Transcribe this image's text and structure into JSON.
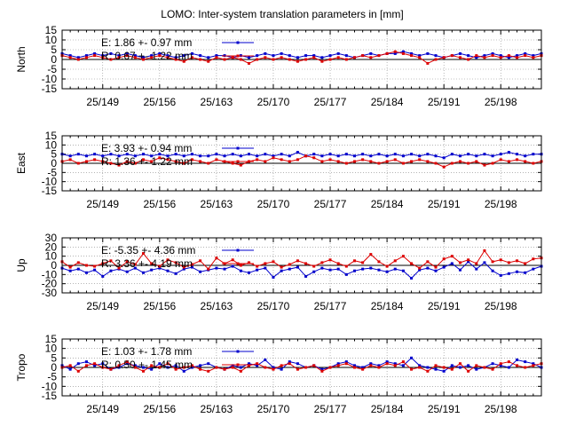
{
  "title": "LOMO: Inter-system translation parameters in [mm]",
  "colors": {
    "e_series": "#0000cc",
    "r_series": "#dd0000",
    "grid": "#888888",
    "axis": "#000000"
  },
  "chart_data": [
    {
      "type": "line",
      "ylabel": "North",
      "ylim": [
        -15,
        15
      ],
      "yticks": [
        15,
        10,
        5,
        0,
        -5,
        -10,
        -15
      ],
      "xlim": [
        144,
        203
      ],
      "xticks": [
        149,
        156,
        163,
        170,
        177,
        184,
        191,
        198
      ],
      "xtick_labels": [
        "25/149",
        "25/156",
        "25/163",
        "25/170",
        "25/177",
        "25/184",
        "25/191",
        "25/198"
      ],
      "legend_placement": "top-left",
      "series": [
        {
          "name": "E:   1.86 +- 0.97 mm",
          "x": [
            144,
            145,
            146,
            147,
            148,
            149,
            150,
            151,
            152,
            153,
            154,
            155,
            156,
            157,
            158,
            159,
            160,
            161,
            162,
            163,
            164,
            165,
            166,
            167,
            168,
            169,
            170,
            171,
            172,
            173,
            174,
            175,
            176,
            177,
            178,
            179,
            180,
            181,
            182,
            183,
            184,
            185,
            186,
            187,
            188,
            189,
            190,
            191,
            192,
            193,
            194,
            195,
            196,
            197,
            198,
            199,
            200,
            201,
            202,
            203
          ],
          "values": [
            3,
            2,
            1,
            2,
            3,
            2,
            3,
            2,
            3,
            2,
            1,
            2,
            3,
            2,
            1,
            2,
            3,
            2,
            1,
            2,
            2,
            1,
            2,
            1,
            2,
            3,
            2,
            3,
            2,
            1,
            2,
            2,
            1,
            2,
            3,
            2,
            1,
            2,
            3,
            2,
            3,
            3,
            4,
            3,
            2,
            3,
            2,
            1,
            2,
            3,
            2,
            1,
            2,
            3,
            2,
            1,
            2,
            3,
            2,
            3
          ]
        },
        {
          "name": "R:   0.67 +- 1.22 mm",
          "x": [
            144,
            145,
            146,
            147,
            148,
            149,
            150,
            151,
            152,
            153,
            154,
            155,
            156,
            157,
            158,
            159,
            160,
            161,
            162,
            163,
            164,
            165,
            166,
            167,
            168,
            169,
            170,
            171,
            172,
            173,
            174,
            175,
            176,
            177,
            178,
            179,
            180,
            181,
            182,
            183,
            184,
            185,
            186,
            187,
            188,
            189,
            190,
            191,
            192,
            193,
            194,
            195,
            196,
            197,
            198,
            199,
            200,
            201,
            202,
            203
          ],
          "values": [
            2,
            1,
            0,
            1,
            2,
            1,
            0,
            1,
            2,
            1,
            0,
            1,
            2,
            1,
            0,
            -1,
            1,
            0,
            -1,
            1,
            0,
            1,
            0,
            -2,
            0,
            1,
            0,
            1,
            0,
            -1,
            0,
            1,
            -1,
            0,
            1,
            0,
            1,
            2,
            1,
            2,
            3,
            4,
            3,
            2,
            1,
            -2,
            0,
            1,
            2,
            1,
            0,
            2,
            1,
            2,
            1,
            2,
            1,
            2,
            1,
            2
          ]
        }
      ]
    },
    {
      "type": "line",
      "ylabel": "East",
      "ylim": [
        -15,
        15
      ],
      "yticks": [
        15,
        10,
        5,
        0,
        -5,
        -10,
        -15
      ],
      "xlim": [
        144,
        203
      ],
      "xticks": [
        149,
        156,
        163,
        170,
        177,
        184,
        191,
        198
      ],
      "xtick_labels": [
        "25/149",
        "25/156",
        "25/163",
        "25/170",
        "25/177",
        "25/184",
        "25/191",
        "25/198"
      ],
      "legend_placement": "top-left",
      "series": [
        {
          "name": "E:   3.93 +- 0.94 mm",
          "x": [
            144,
            145,
            146,
            147,
            148,
            149,
            150,
            151,
            152,
            153,
            154,
            155,
            156,
            157,
            158,
            159,
            160,
            161,
            162,
            163,
            164,
            165,
            166,
            167,
            168,
            169,
            170,
            171,
            172,
            173,
            174,
            175,
            176,
            177,
            178,
            179,
            180,
            181,
            182,
            183,
            184,
            185,
            186,
            187,
            188,
            189,
            190,
            191,
            192,
            193,
            194,
            195,
            196,
            197,
            198,
            199,
            200,
            201,
            202,
            203
          ],
          "values": [
            5,
            4,
            5,
            4,
            5,
            4,
            5,
            4,
            5,
            4,
            5,
            4,
            5,
            4,
            5,
            4,
            5,
            4,
            4,
            5,
            4,
            5,
            4,
            5,
            4,
            5,
            4,
            5,
            4,
            6,
            4,
            5,
            4,
            5,
            4,
            5,
            4,
            5,
            4,
            5,
            4,
            5,
            4,
            5,
            4,
            5,
            4,
            3,
            5,
            4,
            5,
            4,
            5,
            4,
            5,
            6,
            5,
            4,
            5,
            5
          ]
        },
        {
          "name": "R:   1.36 +- 1.22 mm",
          "x": [
            144,
            145,
            146,
            147,
            148,
            149,
            150,
            151,
            152,
            153,
            154,
            155,
            156,
            157,
            158,
            159,
            160,
            161,
            162,
            163,
            164,
            165,
            166,
            167,
            168,
            169,
            170,
            171,
            172,
            173,
            174,
            175,
            176,
            177,
            178,
            179,
            180,
            181,
            182,
            183,
            184,
            185,
            186,
            187,
            188,
            189,
            190,
            191,
            192,
            193,
            194,
            195,
            196,
            197,
            198,
            199,
            200,
            201,
            202,
            203
          ],
          "values": [
            1,
            2,
            0,
            1,
            2,
            1,
            0,
            -1,
            1,
            0,
            2,
            1,
            3,
            2,
            1,
            0,
            2,
            1,
            0,
            2,
            1,
            0,
            -1,
            1,
            2,
            1,
            3,
            2,
            1,
            2,
            4,
            3,
            1,
            2,
            1,
            0,
            1,
            2,
            1,
            0,
            1,
            2,
            0,
            1,
            2,
            1,
            0,
            -2,
            0,
            1,
            0,
            1,
            -1,
            0,
            2,
            1,
            2,
            1,
            0,
            1
          ]
        }
      ]
    },
    {
      "type": "line",
      "ylabel": "Up",
      "ylim": [
        -30,
        30
      ],
      "yticks": [
        30,
        20,
        10,
        0,
        -10,
        -20,
        -30
      ],
      "xlim": [
        144,
        203
      ],
      "xticks": [
        149,
        156,
        163,
        170,
        177,
        184,
        191,
        198
      ],
      "xtick_labels": [
        "25/149",
        "25/156",
        "25/163",
        "25/170",
        "25/177",
        "25/184",
        "25/191",
        "25/198"
      ],
      "legend_placement": "top-left",
      "series": [
        {
          "name": "E:  -5.35 +- 4.36 mm",
          "x": [
            144,
            145,
            146,
            147,
            148,
            149,
            150,
            151,
            152,
            153,
            154,
            155,
            156,
            157,
            158,
            159,
            160,
            161,
            162,
            163,
            164,
            165,
            166,
            167,
            168,
            169,
            170,
            171,
            172,
            173,
            174,
            175,
            176,
            177,
            178,
            179,
            180,
            181,
            182,
            183,
            184,
            185,
            186,
            187,
            188,
            189,
            190,
            191,
            192,
            193,
            194,
            195,
            196,
            197,
            198,
            199,
            200,
            201,
            202,
            203
          ],
          "values": [
            -3,
            -6,
            -4,
            -8,
            -5,
            -12,
            -6,
            -4,
            -7,
            -3,
            -8,
            -5,
            -3,
            -6,
            -9,
            -4,
            -2,
            -7,
            -5,
            -3,
            -4,
            -1,
            -6,
            -8,
            -5,
            -3,
            -13,
            -6,
            -4,
            -2,
            -12,
            -7,
            -3,
            -5,
            -4,
            -10,
            -6,
            -4,
            -3,
            -5,
            -7,
            -4,
            -6,
            -14,
            -5,
            -3,
            -6,
            -2,
            2,
            -5,
            4,
            -4,
            3,
            -6,
            -11,
            -9,
            -7,
            -8,
            -4,
            -1
          ]
        },
        {
          "name": "R:   3.36 +- 4.19 mm",
          "x": [
            144,
            145,
            146,
            147,
            148,
            149,
            150,
            151,
            152,
            153,
            154,
            155,
            156,
            157,
            158,
            159,
            160,
            161,
            162,
            163,
            164,
            165,
            166,
            167,
            168,
            169,
            170,
            171,
            172,
            173,
            174,
            175,
            176,
            177,
            178,
            179,
            180,
            181,
            182,
            183,
            184,
            185,
            186,
            187,
            188,
            189,
            190,
            191,
            192,
            193,
            194,
            195,
            196,
            197,
            198,
            199,
            200,
            201,
            202,
            203
          ],
          "values": [
            4,
            -2,
            3,
            0,
            -1,
            2,
            5,
            -3,
            4,
            1,
            13,
            2,
            -1,
            6,
            3,
            -2,
            1,
            5,
            -4,
            8,
            2,
            6,
            0,
            3,
            -1,
            2,
            4,
            -2,
            1,
            5,
            2,
            -1,
            3,
            6,
            2,
            -1,
            5,
            3,
            12,
            4,
            -1,
            5,
            10,
            2,
            -3,
            4,
            -2,
            7,
            10,
            3,
            6,
            2,
            16,
            4,
            6,
            3,
            5,
            2,
            7,
            8
          ]
        }
      ]
    },
    {
      "type": "line",
      "ylabel": "Tropo",
      "ylim": [
        -15,
        15
      ],
      "yticks": [
        15,
        10,
        5,
        0,
        -5,
        -10,
        -15
      ],
      "xlim": [
        144,
        203
      ],
      "xticks": [
        149,
        156,
        163,
        170,
        177,
        184,
        191,
        198
      ],
      "xtick_labels": [
        "25/149",
        "25/156",
        "25/163",
        "25/170",
        "25/177",
        "25/184",
        "25/191",
        "25/198"
      ],
      "legend_placement": "top-left",
      "series": [
        {
          "name": "E:   1.03 +- 1.78 mm",
          "x": [
            144,
            145,
            146,
            147,
            148,
            149,
            150,
            151,
            152,
            153,
            154,
            155,
            156,
            157,
            158,
            159,
            160,
            161,
            162,
            163,
            164,
            165,
            166,
            167,
            168,
            169,
            170,
            171,
            172,
            173,
            174,
            175,
            176,
            177,
            178,
            179,
            180,
            181,
            182,
            183,
            184,
            185,
            186,
            187,
            188,
            189,
            190,
            191,
            192,
            193,
            194,
            195,
            196,
            197,
            198,
            199,
            200,
            201,
            202,
            203
          ],
          "values": [
            1,
            -1,
            2,
            3,
            1,
            2,
            -1,
            0,
            2,
            1,
            0,
            -1,
            2,
            0,
            1,
            -2,
            0,
            1,
            2,
            0,
            -1,
            1,
            0,
            2,
            1,
            4,
            0,
            -1,
            3,
            2,
            0,
            1,
            -1,
            0,
            2,
            3,
            1,
            0,
            2,
            1,
            3,
            2,
            1,
            5,
            1,
            0,
            -1,
            -2,
            1,
            0,
            1,
            -1,
            0,
            2,
            1,
            0,
            4,
            3,
            2,
            0
          ]
        },
        {
          "name": "R:   0.50 +- 1.45 mm",
          "x": [
            144,
            145,
            146,
            147,
            148,
            149,
            150,
            151,
            152,
            153,
            154,
            155,
            156,
            157,
            158,
            159,
            160,
            161,
            162,
            163,
            164,
            165,
            166,
            167,
            168,
            169,
            170,
            171,
            172,
            173,
            174,
            175,
            176,
            177,
            178,
            179,
            180,
            181,
            182,
            183,
            184,
            185,
            186,
            187,
            188,
            189,
            190,
            191,
            192,
            193,
            194,
            195,
            196,
            197,
            198,
            199,
            200,
            201,
            202,
            203
          ],
          "values": [
            0,
            1,
            -2,
            1,
            2,
            0,
            -1,
            1,
            3,
            0,
            -2,
            1,
            0,
            2,
            -1,
            0,
            1,
            -1,
            -2,
            0,
            -1,
            0,
            -2,
            1,
            2,
            0,
            -1,
            1,
            2,
            -1,
            0,
            1,
            -2,
            0,
            1,
            2,
            0,
            -1,
            1,
            0,
            2,
            1,
            3,
            -1,
            0,
            -2,
            1,
            0,
            -1,
            2,
            -2,
            1,
            0,
            -1,
            2,
            3,
            1,
            0,
            1,
            2
          ]
        }
      ]
    }
  ]
}
